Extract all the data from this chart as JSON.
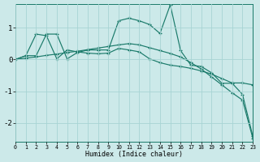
{
  "background_color": "#cce9e9",
  "grid_color": "#a8d4d4",
  "line_color": "#1a7a6a",
  "xlabel": "Humidex (Indice chaleur)",
  "xlim": [
    0,
    23
  ],
  "ylim": [
    -2.6,
    1.75
  ],
  "yticks": [
    -2,
    -1,
    0,
    1
  ],
  "xticks": [
    0,
    1,
    2,
    3,
    4,
    5,
    6,
    7,
    8,
    9,
    10,
    11,
    12,
    13,
    14,
    15,
    16,
    17,
    18,
    19,
    20,
    21,
    22,
    23
  ],
  "line1": {
    "x": [
      0,
      1,
      2,
      3,
      4,
      5,
      6,
      7,
      8,
      9,
      10,
      11,
      12,
      13,
      14,
      15,
      16,
      17,
      18,
      19,
      20,
      21,
      22,
      23
    ],
    "y": [
      0.0,
      0.12,
      0.12,
      0.8,
      0.8,
      0.02,
      0.22,
      0.3,
      0.3,
      0.3,
      1.22,
      1.3,
      1.22,
      1.1,
      0.82,
      1.72,
      0.28,
      -0.18,
      -0.22,
      -0.42,
      -0.75,
      -0.75,
      -1.1,
      -2.42
    ]
  },
  "line2": {
    "x": [
      0,
      1,
      2,
      3,
      4,
      5,
      6,
      7,
      8,
      9,
      10,
      11,
      12,
      13,
      14,
      15,
      16,
      17,
      18,
      19,
      20,
      21,
      22,
      23
    ],
    "y": [
      0.0,
      0.12,
      0.8,
      0.75,
      0.02,
      0.3,
      0.24,
      0.2,
      0.18,
      0.2,
      0.35,
      0.3,
      0.24,
      0.02,
      -0.1,
      -0.18,
      -0.22,
      -0.28,
      -0.36,
      -0.46,
      -0.6,
      -0.74,
      -0.74,
      -0.8
    ]
  },
  "line3": {
    "x": [
      0,
      1,
      2,
      3,
      4,
      5,
      6,
      7,
      8,
      9,
      10,
      11,
      12,
      13,
      14,
      15,
      16,
      17,
      18,
      19,
      20,
      21,
      22,
      23
    ],
    "y": [
      0.0,
      0.04,
      0.08,
      0.13,
      0.17,
      0.22,
      0.26,
      0.31,
      0.36,
      0.41,
      0.46,
      0.5,
      0.46,
      0.37,
      0.28,
      0.19,
      0.08,
      -0.1,
      -0.3,
      -0.55,
      -0.8,
      -1.05,
      -1.28,
      -2.48
    ]
  }
}
